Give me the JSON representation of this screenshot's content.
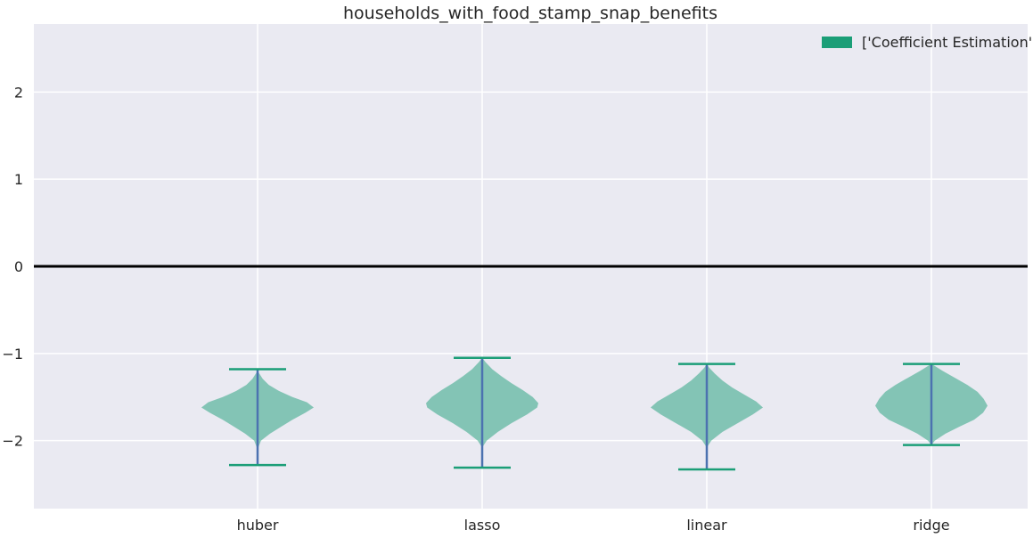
{
  "chart_data": {
    "type": "violin",
    "title": "households_with_food_stamp_snap_benefits",
    "xlabel": "",
    "ylabel": "",
    "categories": [
      "huber",
      "lasso",
      "linear",
      "ridge"
    ],
    "ylim": [
      -2.78,
      2.78
    ],
    "yticks": [
      -2,
      -1,
      0,
      1,
      2
    ],
    "ytick_labels": [
      "−2",
      "−1",
      "0",
      "1",
      "2"
    ],
    "reference_line": 0,
    "legend": {
      "label": "['Coefficient Estimation']",
      "placement": "top-right"
    },
    "grid": true,
    "colors": {
      "background": "#eaeaf2",
      "grid": "#ffffff",
      "body": "#1b9e77",
      "body_opacity": 0.5,
      "caps": "#1b9e77",
      "center_line": "#4c72b0",
      "reference": "#000000"
    },
    "series": [
      {
        "category": "huber",
        "min": -2.28,
        "max": -1.18,
        "profile": [
          [
            -2.1,
            0.0
          ],
          [
            -2.0,
            0.06
          ],
          [
            -1.92,
            0.22
          ],
          [
            -1.84,
            0.42
          ],
          [
            -1.76,
            0.62
          ],
          [
            -1.68,
            0.85
          ],
          [
            -1.62,
            1.0
          ],
          [
            -1.56,
            0.88
          ],
          [
            -1.5,
            0.62
          ],
          [
            -1.43,
            0.38
          ],
          [
            -1.36,
            0.2
          ],
          [
            -1.29,
            0.09
          ],
          [
            -1.22,
            0.02
          ],
          [
            -1.18,
            0.0
          ]
        ]
      },
      {
        "category": "lasso",
        "min": -2.31,
        "max": -1.05,
        "profile": [
          [
            -2.08,
            0.0
          ],
          [
            -2.0,
            0.08
          ],
          [
            -1.9,
            0.28
          ],
          [
            -1.8,
            0.52
          ],
          [
            -1.7,
            0.8
          ],
          [
            -1.62,
            0.98
          ],
          [
            -1.57,
            1.0
          ],
          [
            -1.5,
            0.9
          ],
          [
            -1.42,
            0.72
          ],
          [
            -1.34,
            0.52
          ],
          [
            -1.26,
            0.34
          ],
          [
            -1.18,
            0.18
          ],
          [
            -1.1,
            0.06
          ],
          [
            -1.05,
            0.0
          ]
        ]
      },
      {
        "category": "linear",
        "min": -2.33,
        "max": -1.12,
        "profile": [
          [
            -2.08,
            0.0
          ],
          [
            -2.0,
            0.08
          ],
          [
            -1.9,
            0.28
          ],
          [
            -1.8,
            0.55
          ],
          [
            -1.7,
            0.82
          ],
          [
            -1.62,
            1.0
          ],
          [
            -1.55,
            0.88
          ],
          [
            -1.47,
            0.66
          ],
          [
            -1.39,
            0.45
          ],
          [
            -1.31,
            0.28
          ],
          [
            -1.23,
            0.14
          ],
          [
            -1.16,
            0.04
          ],
          [
            -1.12,
            0.0
          ]
        ]
      },
      {
        "category": "ridge",
        "min": -2.05,
        "max": -1.12,
        "profile": [
          [
            -2.05,
            0.0
          ],
          [
            -2.0,
            0.06
          ],
          [
            -1.92,
            0.25
          ],
          [
            -1.84,
            0.5
          ],
          [
            -1.76,
            0.76
          ],
          [
            -1.68,
            0.92
          ],
          [
            -1.6,
            1.0
          ],
          [
            -1.52,
            0.93
          ],
          [
            -1.44,
            0.82
          ],
          [
            -1.36,
            0.64
          ],
          [
            -1.28,
            0.42
          ],
          [
            -1.2,
            0.2
          ],
          [
            -1.14,
            0.05
          ],
          [
            -1.12,
            0.0
          ]
        ]
      }
    ]
  }
}
